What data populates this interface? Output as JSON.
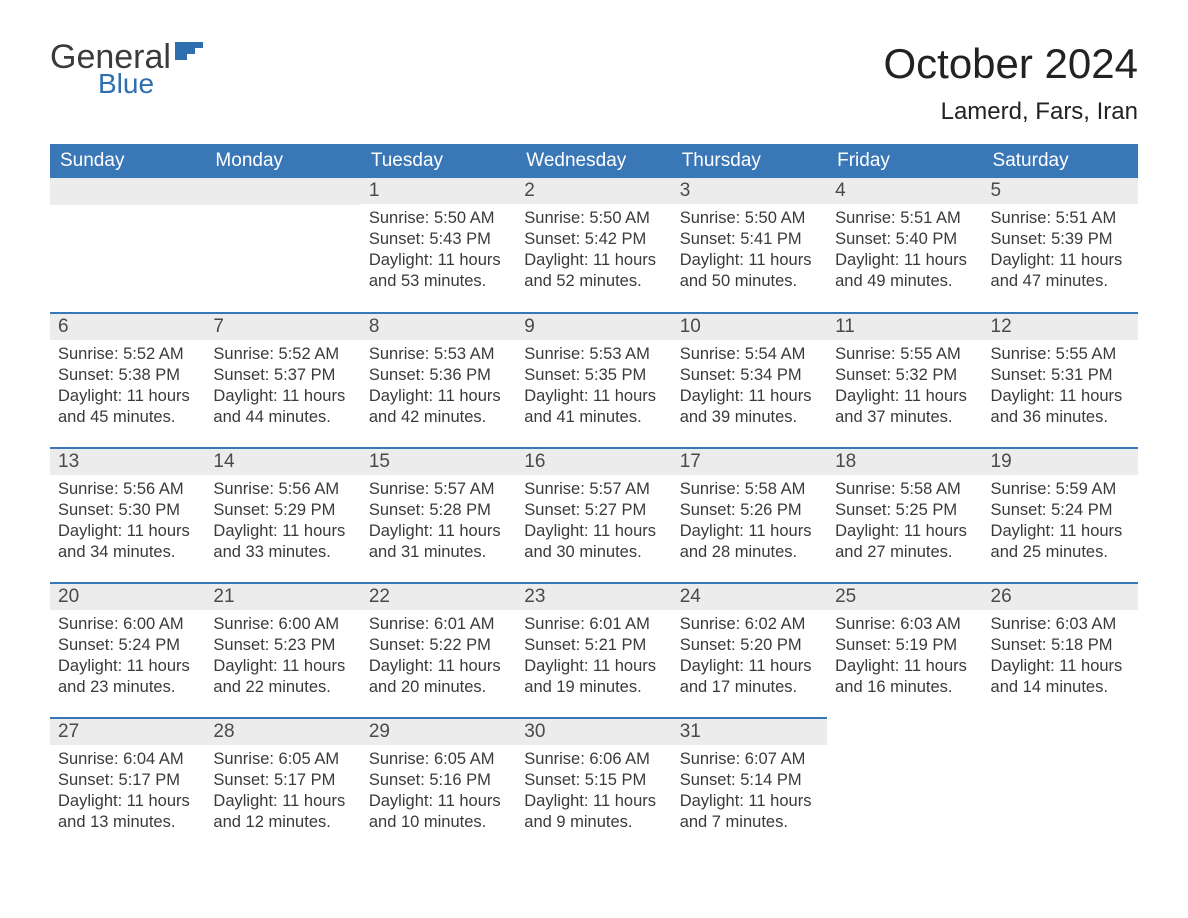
{
  "brand": {
    "name_part1": "General",
    "name_part2": "Blue"
  },
  "title": "October 2024",
  "location": "Lamerd, Fars, Iran",
  "colors": {
    "header_bg": "#3a77b6",
    "header_text": "#ffffff",
    "daynum_bg": "#ececec",
    "row_divider": "#3a77b6",
    "body_text": "#3a3a3a",
    "brand_blue": "#2f6fb0",
    "page_bg": "#ffffff"
  },
  "typography": {
    "title_fontsize": 42,
    "location_fontsize": 24,
    "weekday_fontsize": 19,
    "daynum_fontsize": 19,
    "body_fontsize": 16.5
  },
  "layout": {
    "columns": 7,
    "rows": 5,
    "leading_blanks": 2
  },
  "weekdays": [
    "Sunday",
    "Monday",
    "Tuesday",
    "Wednesday",
    "Thursday",
    "Friday",
    "Saturday"
  ],
  "days": [
    {
      "n": 1,
      "sunrise": "5:50 AM",
      "sunset": "5:43 PM",
      "daylight": "11 hours and 53 minutes."
    },
    {
      "n": 2,
      "sunrise": "5:50 AM",
      "sunset": "5:42 PM",
      "daylight": "11 hours and 52 minutes."
    },
    {
      "n": 3,
      "sunrise": "5:50 AM",
      "sunset": "5:41 PM",
      "daylight": "11 hours and 50 minutes."
    },
    {
      "n": 4,
      "sunrise": "5:51 AM",
      "sunset": "5:40 PM",
      "daylight": "11 hours and 49 minutes."
    },
    {
      "n": 5,
      "sunrise": "5:51 AM",
      "sunset": "5:39 PM",
      "daylight": "11 hours and 47 minutes."
    },
    {
      "n": 6,
      "sunrise": "5:52 AM",
      "sunset": "5:38 PM",
      "daylight": "11 hours and 45 minutes."
    },
    {
      "n": 7,
      "sunrise": "5:52 AM",
      "sunset": "5:37 PM",
      "daylight": "11 hours and 44 minutes."
    },
    {
      "n": 8,
      "sunrise": "5:53 AM",
      "sunset": "5:36 PM",
      "daylight": "11 hours and 42 minutes."
    },
    {
      "n": 9,
      "sunrise": "5:53 AM",
      "sunset": "5:35 PM",
      "daylight": "11 hours and 41 minutes."
    },
    {
      "n": 10,
      "sunrise": "5:54 AM",
      "sunset": "5:34 PM",
      "daylight": "11 hours and 39 minutes."
    },
    {
      "n": 11,
      "sunrise": "5:55 AM",
      "sunset": "5:32 PM",
      "daylight": "11 hours and 37 minutes."
    },
    {
      "n": 12,
      "sunrise": "5:55 AM",
      "sunset": "5:31 PM",
      "daylight": "11 hours and 36 minutes."
    },
    {
      "n": 13,
      "sunrise": "5:56 AM",
      "sunset": "5:30 PM",
      "daylight": "11 hours and 34 minutes."
    },
    {
      "n": 14,
      "sunrise": "5:56 AM",
      "sunset": "5:29 PM",
      "daylight": "11 hours and 33 minutes."
    },
    {
      "n": 15,
      "sunrise": "5:57 AM",
      "sunset": "5:28 PM",
      "daylight": "11 hours and 31 minutes."
    },
    {
      "n": 16,
      "sunrise": "5:57 AM",
      "sunset": "5:27 PM",
      "daylight": "11 hours and 30 minutes."
    },
    {
      "n": 17,
      "sunrise": "5:58 AM",
      "sunset": "5:26 PM",
      "daylight": "11 hours and 28 minutes."
    },
    {
      "n": 18,
      "sunrise": "5:58 AM",
      "sunset": "5:25 PM",
      "daylight": "11 hours and 27 minutes."
    },
    {
      "n": 19,
      "sunrise": "5:59 AM",
      "sunset": "5:24 PM",
      "daylight": "11 hours and 25 minutes."
    },
    {
      "n": 20,
      "sunrise": "6:00 AM",
      "sunset": "5:24 PM",
      "daylight": "11 hours and 23 minutes."
    },
    {
      "n": 21,
      "sunrise": "6:00 AM",
      "sunset": "5:23 PM",
      "daylight": "11 hours and 22 minutes."
    },
    {
      "n": 22,
      "sunrise": "6:01 AM",
      "sunset": "5:22 PM",
      "daylight": "11 hours and 20 minutes."
    },
    {
      "n": 23,
      "sunrise": "6:01 AM",
      "sunset": "5:21 PM",
      "daylight": "11 hours and 19 minutes."
    },
    {
      "n": 24,
      "sunrise": "6:02 AM",
      "sunset": "5:20 PM",
      "daylight": "11 hours and 17 minutes."
    },
    {
      "n": 25,
      "sunrise": "6:03 AM",
      "sunset": "5:19 PM",
      "daylight": "11 hours and 16 minutes."
    },
    {
      "n": 26,
      "sunrise": "6:03 AM",
      "sunset": "5:18 PM",
      "daylight": "11 hours and 14 minutes."
    },
    {
      "n": 27,
      "sunrise": "6:04 AM",
      "sunset": "5:17 PM",
      "daylight": "11 hours and 13 minutes."
    },
    {
      "n": 28,
      "sunrise": "6:05 AM",
      "sunset": "5:17 PM",
      "daylight": "11 hours and 12 minutes."
    },
    {
      "n": 29,
      "sunrise": "6:05 AM",
      "sunset": "5:16 PM",
      "daylight": "11 hours and 10 minutes."
    },
    {
      "n": 30,
      "sunrise": "6:06 AM",
      "sunset": "5:15 PM",
      "daylight": "11 hours and 9 minutes."
    },
    {
      "n": 31,
      "sunrise": "6:07 AM",
      "sunset": "5:14 PM",
      "daylight": "11 hours and 7 minutes."
    }
  ],
  "labels": {
    "sunrise": "Sunrise: ",
    "sunset": "Sunset: ",
    "daylight": "Daylight: "
  }
}
